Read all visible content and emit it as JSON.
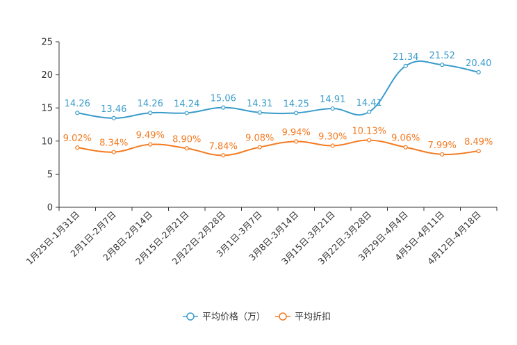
{
  "chart_data": {
    "type": "line",
    "title": "",
    "xlabel": "",
    "ylabel": "",
    "ylim": [
      0,
      25
    ],
    "yticks": [
      0,
      5,
      10,
      15,
      20,
      25
    ],
    "grid": false,
    "legend_position": "bottom-center",
    "categories": [
      "1月25日-1月31日",
      "2月1日-2月7日",
      "2月8日-2月14日",
      "2月15日-2月21日",
      "2月22日-2月28日",
      "3月1日-3月7日",
      "3月8日-3月14日",
      "3月15日-3月21日",
      "3月22日-3月28日",
      "3月29日-4月4日",
      "4月5日-4月11日",
      "4月12日-4月18日"
    ],
    "series": [
      {
        "name": "平均价格（万）",
        "color": "#3a9ccb",
        "values": [
          14.26,
          13.46,
          14.26,
          14.24,
          15.06,
          14.31,
          14.25,
          14.91,
          14.41,
          21.34,
          21.52,
          20.4
        ],
        "labels": [
          "14.26",
          "13.46",
          "14.26",
          "14.24",
          "15.06",
          "14.31",
          "14.25",
          "14.91",
          "14.41",
          "21.34",
          "21.52",
          "20.40"
        ]
      },
      {
        "name": "平均折扣",
        "color": "#f47a20",
        "values": [
          9.02,
          8.34,
          9.49,
          8.9,
          7.84,
          9.08,
          9.94,
          9.3,
          10.13,
          9.06,
          7.99,
          8.49
        ],
        "labels": [
          "9.02%",
          "8.34%",
          "9.49%",
          "8.90%",
          "7.84%",
          "9.08%",
          "9.94%",
          "9.30%",
          "10.13%",
          "9.06%",
          "7.99%",
          "8.49%"
        ]
      }
    ]
  }
}
